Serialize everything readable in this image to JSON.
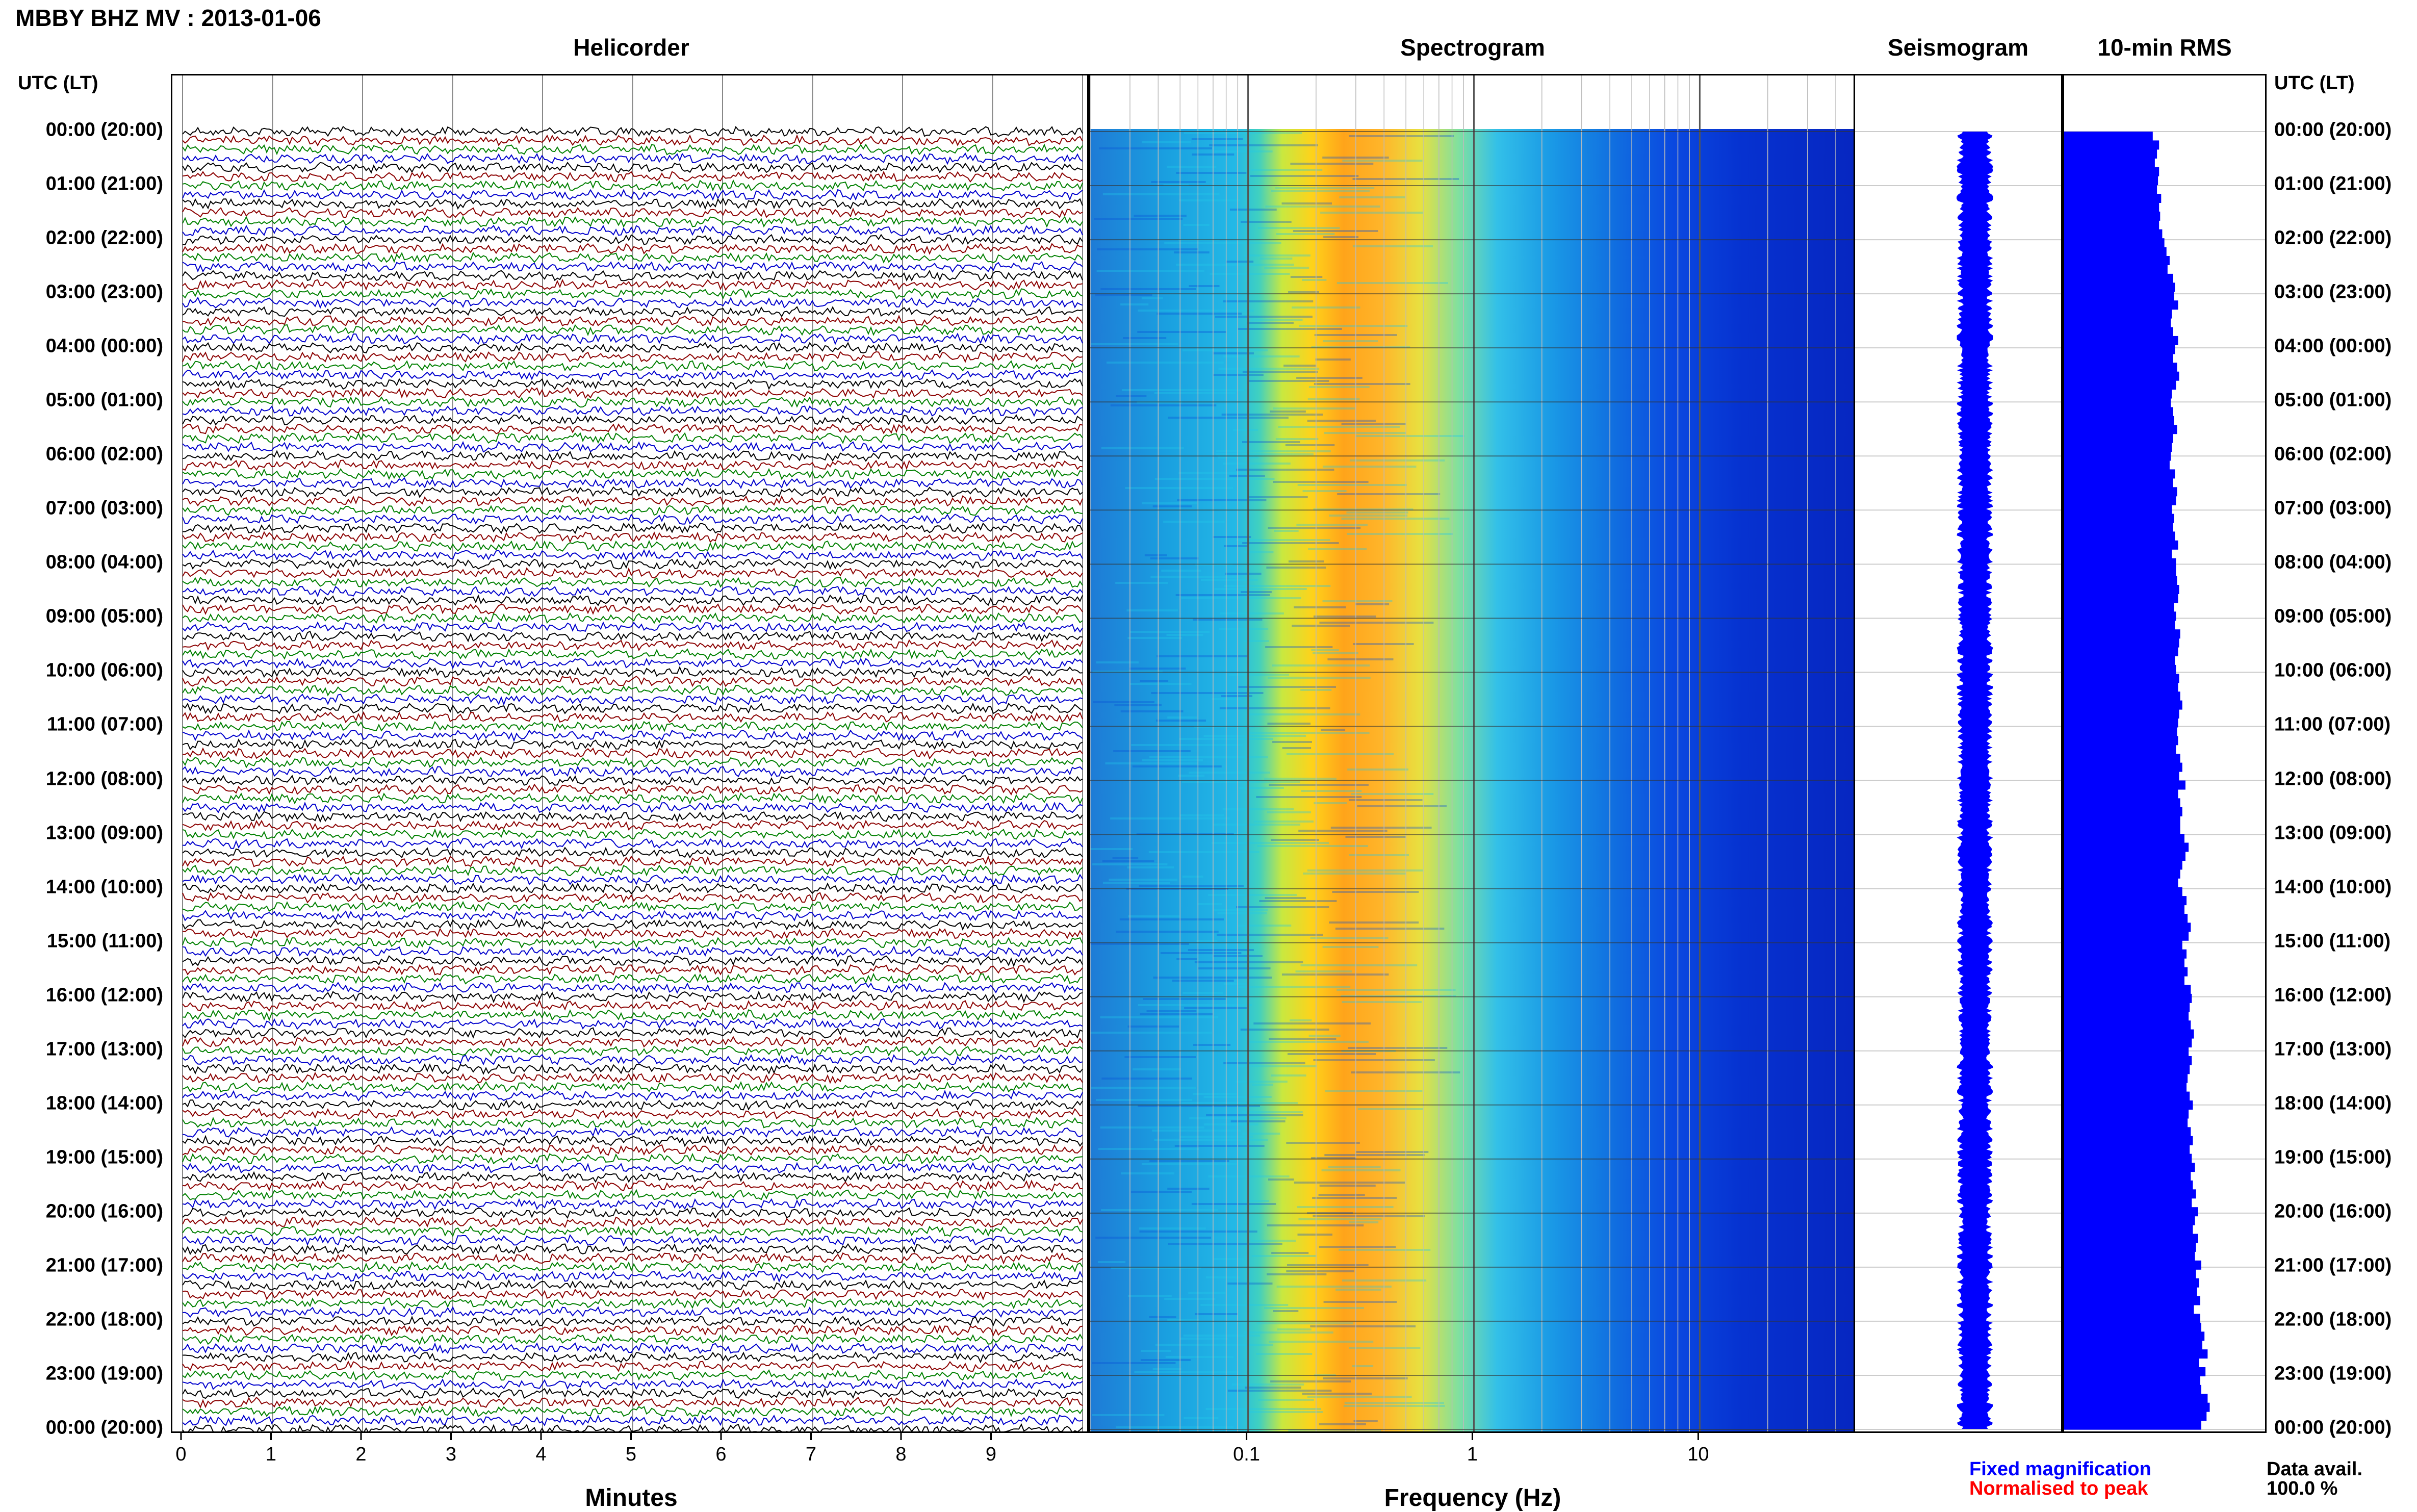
{
  "header": {
    "station_title": "MBBY BHZ MV : 2013-01-06",
    "utc_label_left": "UTC (LT)",
    "utc_label_right": "UTC (LT)"
  },
  "panels": {
    "helicorder": "Helicorder",
    "spectrogram": "Spectrogram",
    "seismogram": "Seismogram",
    "rms": "10-min RMS"
  },
  "axes": {
    "helicorder_xlabel": "Minutes",
    "spectrogram_xlabel": "Frequency (Hz)",
    "helicorder_ticks": [
      "0",
      "1",
      "2",
      "3",
      "4",
      "5",
      "6",
      "7",
      "8",
      "9"
    ],
    "spectrogram_ticks": [
      "0.1",
      "1",
      "10"
    ]
  },
  "legend": {
    "fixed": "Fixed magnification",
    "normalised": "Normalised to peak",
    "data_avail_label": "Data avail.",
    "data_avail_value": "100.0 %",
    "fixed_color": "#0000ff",
    "normalised_color": "#ff0000"
  },
  "time_labels": [
    "00:00 (20:00)",
    "01:00 (21:00)",
    "02:00 (22:00)",
    "03:00 (23:00)",
    "04:00 (00:00)",
    "05:00 (01:00)",
    "06:00 (02:00)",
    "07:00 (03:00)",
    "08:00 (04:00)",
    "09:00 (05:00)",
    "10:00 (06:00)",
    "11:00 (07:00)",
    "12:00 (08:00)",
    "13:00 (09:00)",
    "14:00 (10:00)",
    "15:00 (11:00)",
    "16:00 (12:00)",
    "17:00 (13:00)",
    "18:00 (14:00)",
    "19:00 (15:00)",
    "20:00 (16:00)",
    "21:00 (17:00)",
    "22:00 (18:00)",
    "23:00 (19:00)",
    "00:00 (20:00)"
  ],
  "chart_data": {
    "type": "heatmap",
    "helicorder": {
      "x_range_minutes": [
        0,
        10
      ],
      "traces_per_hour": 6,
      "trace_colors": [
        "#000000",
        "#8b0000",
        "#008000",
        "#0000cd"
      ]
    },
    "spectrogram": {
      "x_scale": "log",
      "x_range_hz": [
        0.02,
        50
      ],
      "peak_band_hz": [
        0.18,
        0.5
      ],
      "colormap": [
        "#00008b",
        "#0000ff",
        "#00bfff",
        "#40e0d0",
        "#ffff00",
        "#ffa500"
      ]
    },
    "rms_10min": {
      "color": "#0000ff",
      "relative_values": [
        0.84,
        0.9,
        0.88,
        0.86,
        0.9,
        0.89,
        0.88,
        0.92,
        0.9,
        0.91,
        0.9,
        0.93,
        0.95,
        0.97,
        1.0,
        0.98,
        1.03,
        1.05,
        1.04,
        1.08,
        1.02,
        1.01,
        1.03,
        1.08,
        1.05,
        1.03,
        1.07,
        1.09,
        1.06,
        1.02,
        1.01,
        1.03,
        1.04,
        1.07,
        1.03,
        1.02,
        1.01,
        1.0,
        1.05,
        1.03,
        1.07,
        1.06,
        1.02,
        1.04,
        1.03,
        1.05,
        1.08,
        1.02,
        1.06,
        1.06,
        1.07,
        1.09,
        1.08,
        1.04,
        1.06,
        1.05,
        1.1,
        1.09,
        1.08,
        1.05,
        1.06,
        1.09,
        1.08,
        1.1,
        1.12,
        1.09,
        1.08,
        1.07,
        1.08,
        1.06,
        1.1,
        1.12,
        1.09,
        1.15,
        1.08,
        1.1,
        1.12,
        1.1,
        1.1,
        1.14,
        1.18,
        1.15,
        1.12,
        1.1,
        1.08,
        1.12,
        1.16,
        1.14,
        1.17,
        1.2,
        1.18,
        1.12,
        1.16,
        1.14,
        1.17,
        1.14,
        1.2,
        1.21,
        1.19,
        1.18,
        1.2,
        1.23,
        1.21,
        1.18,
        1.21,
        1.19,
        1.17,
        1.16,
        1.19,
        1.22,
        1.18,
        1.17,
        1.2,
        1.22,
        1.19,
        1.21,
        1.24,
        1.2,
        1.22,
        1.25,
        1.21,
        1.27,
        1.24,
        1.22,
        1.27,
        1.25,
        1.24,
        1.3,
        1.25,
        1.28,
        1.26,
        1.29,
        1.23,
        1.29,
        1.3,
        1.33,
        1.31,
        1.36,
        1.28,
        1.34,
        1.29,
        1.3,
        1.36,
        1.38,
        1.35,
        1.3
      ]
    }
  }
}
